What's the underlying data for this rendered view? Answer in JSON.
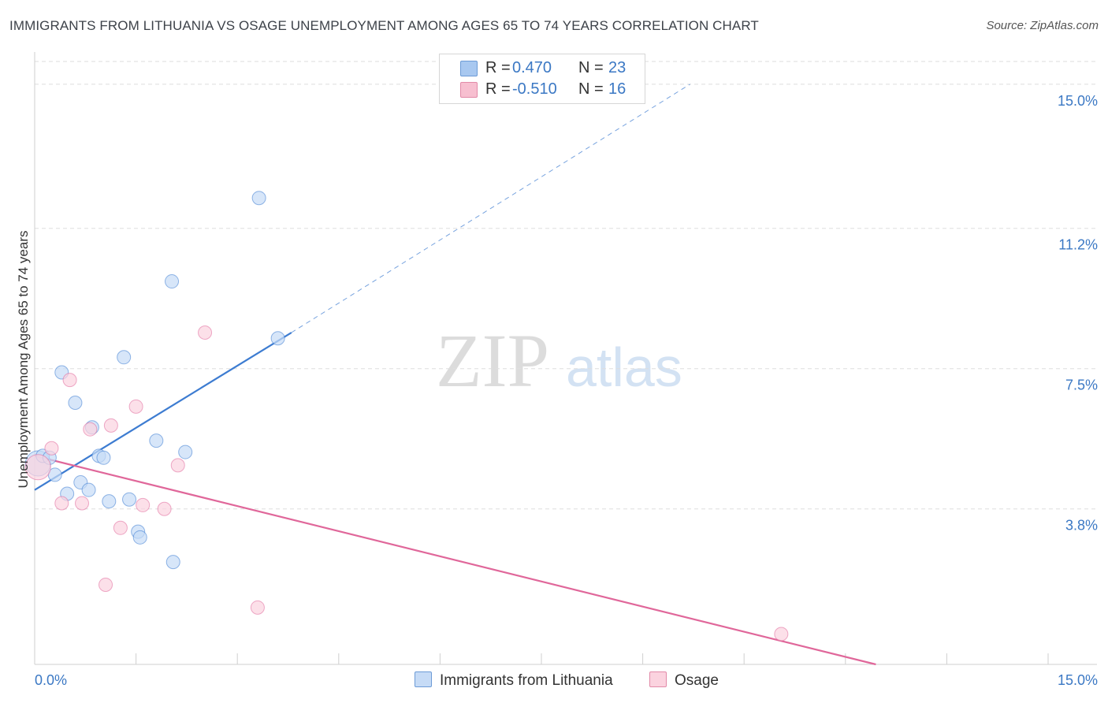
{
  "title": "IMMIGRANTS FROM LITHUANIA VS OSAGE UNEMPLOYMENT AMONG AGES 65 TO 74 YEARS CORRELATION CHART",
  "source": "Source: ZipAtlas.com",
  "watermark": {
    "zip": "ZIP",
    "atlas": "atlas"
  },
  "legend": {
    "rows": [
      {
        "r_label": "R =",
        "r_value": "0.470",
        "n_label": "N =",
        "n_value": "23",
        "color": "#a8c8f0",
        "border": "#6c9bd6"
      },
      {
        "r_label": "R =",
        "r_value": "-0.510",
        "n_label": "N =",
        "n_value": "16",
        "color": "#f7bfd0",
        "border": "#e28aa8"
      }
    ]
  },
  "bottom_legend": [
    {
      "label": "Immigrants from Lithuania",
      "color": "#c6dbf6",
      "border": "#6c9bd6"
    },
    {
      "label": "Osage",
      "color": "#fbd3df",
      "border": "#e28aa8"
    }
  ],
  "chart_data": {
    "type": "scatter",
    "title": "IMMIGRANTS FROM LITHUANIA VS OSAGE UNEMPLOYMENT AMONG AGES 65 TO 74 YEARS CORRELATION CHART",
    "xlabel": "",
    "ylabel": "Unemployment Among Ages 65 to 74 years",
    "xlim": [
      0,
      15
    ],
    "ylim": [
      -0.3,
      15.6
    ],
    "x_tick_labels": [
      "0.0%",
      "15.0%"
    ],
    "y_ticks": [
      3.8,
      7.5,
      11.2,
      15.0
    ],
    "y_tick_labels": [
      "3.8%",
      "7.5%",
      "11.2%",
      "15.0%"
    ],
    "series": [
      {
        "name": "Immigrants from Lithuania",
        "color": "#3d7cd1",
        "fill": "#c6dbf6",
        "points": [
          {
            "x": 0.05,
            "y": 5.0
          },
          {
            "x": 0.12,
            "y": 5.2
          },
          {
            "x": 0.22,
            "y": 5.15
          },
          {
            "x": 0.3,
            "y": 4.7
          },
          {
            "x": 0.4,
            "y": 7.4
          },
          {
            "x": 0.48,
            "y": 4.2
          },
          {
            "x": 0.6,
            "y": 6.6
          },
          {
            "x": 0.68,
            "y": 4.5
          },
          {
            "x": 0.8,
            "y": 4.3
          },
          {
            "x": 0.85,
            "y": 5.95
          },
          {
            "x": 0.95,
            "y": 5.2
          },
          {
            "x": 1.02,
            "y": 5.15
          },
          {
            "x": 1.1,
            "y": 4.0
          },
          {
            "x": 1.32,
            "y": 7.8
          },
          {
            "x": 1.4,
            "y": 4.05
          },
          {
            "x": 1.53,
            "y": 3.2
          },
          {
            "x": 1.56,
            "y": 3.05
          },
          {
            "x": 1.8,
            "y": 5.6
          },
          {
            "x": 2.03,
            "y": 9.8
          },
          {
            "x": 2.05,
            "y": 2.4
          },
          {
            "x": 2.23,
            "y": 5.3
          },
          {
            "x": 3.32,
            "y": 12.0
          },
          {
            "x": 3.6,
            "y": 8.3
          }
        ],
        "trend": {
          "x1": 0.0,
          "y1": 4.3,
          "x2": 3.8,
          "y2": 8.45,
          "dash_to_x": 9.7,
          "dash_to_y": 15.0
        }
      },
      {
        "name": "Osage",
        "color": "#e0679a",
        "fill": "#fbd3df",
        "points": [
          {
            "x": 0.05,
            "y": 4.9
          },
          {
            "x": 0.25,
            "y": 5.4
          },
          {
            "x": 0.4,
            "y": 3.95
          },
          {
            "x": 0.52,
            "y": 7.2
          },
          {
            "x": 0.7,
            "y": 3.95
          },
          {
            "x": 0.82,
            "y": 5.9
          },
          {
            "x": 1.05,
            "y": 1.8
          },
          {
            "x": 1.13,
            "y": 6.0
          },
          {
            "x": 1.27,
            "y": 3.3
          },
          {
            "x": 1.5,
            "y": 6.5
          },
          {
            "x": 1.6,
            "y": 3.9
          },
          {
            "x": 1.92,
            "y": 3.8
          },
          {
            "x": 2.12,
            "y": 4.95
          },
          {
            "x": 2.52,
            "y": 8.45
          },
          {
            "x": 3.3,
            "y": 1.2
          },
          {
            "x": 11.05,
            "y": 0.5
          }
        ],
        "trend": {
          "x1": 0.0,
          "y1": 5.2,
          "x2": 12.45,
          "y2": -0.3
        }
      }
    ]
  }
}
